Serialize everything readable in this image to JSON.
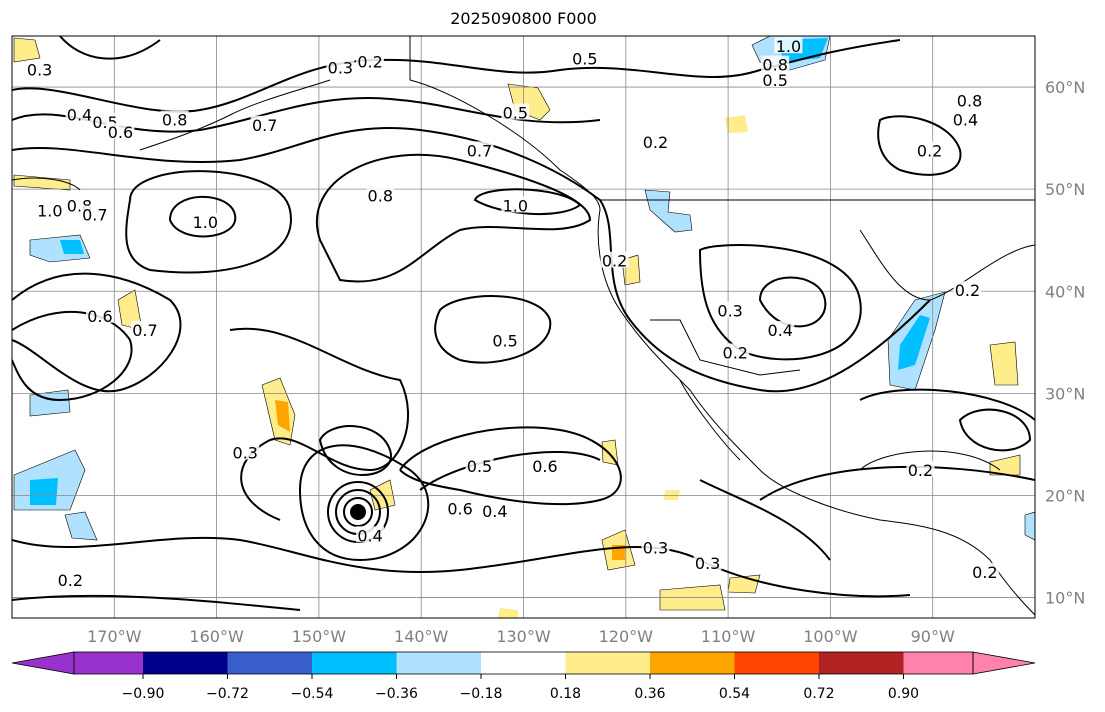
{
  "title": "2025090800 F000",
  "map": {
    "extent": {
      "lon": [
        -180,
        -80
      ],
      "lat": [
        8,
        65
      ]
    },
    "lon_ticks": [
      {
        "lon": -170,
        "label": "170°W"
      },
      {
        "lon": -160,
        "label": "160°W"
      },
      {
        "lon": -150,
        "label": "150°W"
      },
      {
        "lon": -140,
        "label": "140°W"
      },
      {
        "lon": -130,
        "label": "130°W"
      },
      {
        "lon": -120,
        "label": "120°W"
      },
      {
        "lon": -110,
        "label": "110°W"
      },
      {
        "lon": -100,
        "label": "100°W"
      },
      {
        "lon": -90,
        "label": "90°W"
      }
    ],
    "lat_ticks": [
      {
        "lat": 60,
        "label": "60°N"
      },
      {
        "lat": 50,
        "label": "50°N"
      },
      {
        "lat": 40,
        "label": "40°N"
      },
      {
        "lat": 30,
        "label": "30°N"
      },
      {
        "lat": 20,
        "label": "20°N"
      },
      {
        "lat": 10,
        "label": "10°N"
      }
    ],
    "contour_labels": [
      {
        "lon": -177.3,
        "lat": 61.7,
        "text": "0.3"
      },
      {
        "lon": -145.0,
        "lat": 62.5,
        "text": "0.2"
      },
      {
        "lon": -147.9,
        "lat": 61.9,
        "text": "0.3"
      },
      {
        "lon": -124.0,
        "lat": 62.8,
        "text": "0.5"
      },
      {
        "lon": -104.1,
        "lat": 64.0,
        "text": "1.0"
      },
      {
        "lon": -105.4,
        "lat": 62.2,
        "text": "0.8"
      },
      {
        "lon": -105.4,
        "lat": 60.7,
        "text": "0.5"
      },
      {
        "lon": -173.4,
        "lat": 57.3,
        "text": "0.4"
      },
      {
        "lon": -170.9,
        "lat": 56.6,
        "text": "0.5"
      },
      {
        "lon": -169.4,
        "lat": 55.6,
        "text": "0.6"
      },
      {
        "lon": -164.1,
        "lat": 56.8,
        "text": "0.8"
      },
      {
        "lon": -155.3,
        "lat": 56.3,
        "text": "0.7"
      },
      {
        "lon": -130.8,
        "lat": 57.5,
        "text": "0.5"
      },
      {
        "lon": -134.3,
        "lat": 53.8,
        "text": "0.7"
      },
      {
        "lon": -117.1,
        "lat": 54.6,
        "text": "0.2"
      },
      {
        "lon": -90.3,
        "lat": 53.8,
        "text": "0.2"
      },
      {
        "lon": -86.4,
        "lat": 58.7,
        "text": "0.8"
      },
      {
        "lon": -86.8,
        "lat": 56.8,
        "text": "0.4"
      },
      {
        "lon": -161.1,
        "lat": 46.8,
        "text": "1.0"
      },
      {
        "lon": -144.0,
        "lat": 49.4,
        "text": "0.8"
      },
      {
        "lon": -130.8,
        "lat": 48.4,
        "text": "1.0"
      },
      {
        "lon": -176.3,
        "lat": 47.9,
        "text": "1.0"
      },
      {
        "lon": -173.4,
        "lat": 48.4,
        "text": "0.8"
      },
      {
        "lon": -171.9,
        "lat": 47.5,
        "text": "0.7"
      },
      {
        "lon": -121.1,
        "lat": 43.0,
        "text": "0.2"
      },
      {
        "lon": -171.4,
        "lat": 37.6,
        "text": "0.6"
      },
      {
        "lon": -167.0,
        "lat": 36.2,
        "text": "0.7"
      },
      {
        "lon": -131.8,
        "lat": 35.2,
        "text": "0.5"
      },
      {
        "lon": -104.9,
        "lat": 36.2,
        "text": "0.4"
      },
      {
        "lon": -109.8,
        "lat": 38.1,
        "text": "0.3"
      },
      {
        "lon": -109.3,
        "lat": 34.0,
        "text": "0.2"
      },
      {
        "lon": -86.6,
        "lat": 40.1,
        "text": "0.2"
      },
      {
        "lon": -157.2,
        "lat": 24.2,
        "text": "0.3"
      },
      {
        "lon": -134.3,
        "lat": 22.9,
        "text": "0.5"
      },
      {
        "lon": -127.9,
        "lat": 22.9,
        "text": "0.6"
      },
      {
        "lon": -136.2,
        "lat": 18.7,
        "text": "0.6"
      },
      {
        "lon": -132.8,
        "lat": 18.5,
        "text": "0.4"
      },
      {
        "lon": -145.0,
        "lat": 16.1,
        "text": "0.4"
      },
      {
        "lon": -117.1,
        "lat": 14.9,
        "text": "0.3"
      },
      {
        "lon": -112.0,
        "lat": 13.4,
        "text": "0.3"
      },
      {
        "lon": -91.2,
        "lat": 22.5,
        "text": "0.2"
      },
      {
        "lon": -84.9,
        "lat": 12.5,
        "text": "0.2"
      },
      {
        "lon": -174.3,
        "lat": 11.7,
        "text": "0.2"
      }
    ]
  },
  "colorbar": {
    "under_color": "#9932CC",
    "over_color": "#FF82AB",
    "colors": [
      "#00008B",
      "#3A5FCD",
      "#00BFFF",
      "#B0E2FF",
      "#FFFFFF",
      "#FFEC8B",
      "#FFA500",
      "#FF4500",
      "#B22222"
    ],
    "tick_labels": [
      "−0.90",
      "−0.72",
      "−0.54",
      "−0.36",
      "−0.18",
      "0.18",
      "0.36",
      "0.54",
      "0.72",
      "0.90"
    ]
  }
}
